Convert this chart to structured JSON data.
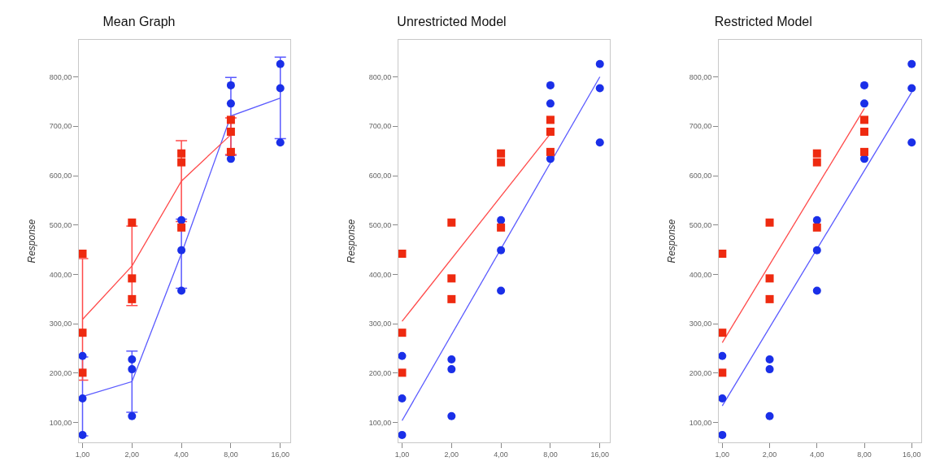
{
  "chart_data": [
    {
      "type": "scatter",
      "title": "Mean Graph",
      "ylabel": "Response",
      "log": "x",
      "xlim": [
        0.95,
        18.4
      ],
      "ylim": [
        60,
        875
      ],
      "xticks": [
        {
          "value": 1,
          "label": "1,00"
        },
        {
          "value": 2,
          "label": "2,00"
        },
        {
          "value": 4,
          "label": "4,00"
        },
        {
          "value": 8,
          "label": "8,00"
        },
        {
          "value": 16,
          "label": "16,00"
        }
      ],
      "yticks": [
        {
          "value": 100,
          "label": "100,00"
        },
        {
          "value": 200,
          "label": "200,00"
        },
        {
          "value": 300,
          "label": "300,00"
        },
        {
          "value": 400,
          "label": "400,00"
        },
        {
          "value": 500,
          "label": "500,00"
        },
        {
          "value": 600,
          "label": "600,00"
        },
        {
          "value": 700,
          "label": "700,00"
        },
        {
          "value": 800,
          "label": "800,00"
        }
      ],
      "series": [
        {
          "type": "line",
          "marker": "none",
          "color": "#5a5aff",
          "x": [
            1,
            2,
            4,
            8,
            16
          ],
          "values": [
            153,
            183,
            442,
            721,
            757
          ],
          "errors": [
            [
              73,
              233
            ],
            [
              121,
              245
            ],
            [
              372,
              512
            ],
            [
              641,
              799
            ],
            [
              675,
              840
            ]
          ]
        },
        {
          "type": "line",
          "marker": "none",
          "color": "#ff4a4a",
          "x": [
            1,
            2,
            4,
            8
          ],
          "values": [
            309,
            417,
            589,
            683
          ],
          "errors": [
            [
              186,
              432
            ],
            [
              337,
              498
            ],
            [
              507,
              671
            ],
            [
              643,
              717
            ]
          ]
        },
        {
          "type": "scatter",
          "marker": "circle",
          "color": "#1a2fe8",
          "x": [
            1,
            1,
            1,
            2,
            2,
            2,
            4,
            4,
            4,
            8,
            8,
            8,
            16,
            16,
            16
          ],
          "values": [
            235,
            149,
            75,
            228,
            208,
            113,
            510,
            449,
            367,
            783,
            746,
            634,
            826,
            777,
            667
          ]
        },
        {
          "type": "scatter",
          "marker": "square",
          "color": "#ee2a10",
          "x": [
            1,
            1,
            1,
            2,
            2,
            2,
            4,
            4,
            4,
            8,
            8,
            8
          ],
          "values": [
            442,
            282,
            201,
            505,
            392,
            350,
            645,
            627,
            495,
            713,
            689,
            648
          ]
        }
      ]
    },
    {
      "type": "scatter",
      "title": "Unrestricted Model",
      "ylabel": "Response",
      "log": "x",
      "xlim": [
        0.95,
        18.4
      ],
      "ylim": [
        60,
        875
      ],
      "xticks": [
        {
          "value": 1,
          "label": "1,00"
        },
        {
          "value": 2,
          "label": "2,00"
        },
        {
          "value": 4,
          "label": "4,00"
        },
        {
          "value": 8,
          "label": "8,00"
        },
        {
          "value": 16,
          "label": "16,00"
        }
      ],
      "yticks": [
        {
          "value": 100,
          "label": "100,00"
        },
        {
          "value": 200,
          "label": "200,00"
        },
        {
          "value": 300,
          "label": "300,00"
        },
        {
          "value": 400,
          "label": "400,00"
        },
        {
          "value": 500,
          "label": "500,00"
        },
        {
          "value": 600,
          "label": "600,00"
        },
        {
          "value": 700,
          "label": "700,00"
        },
        {
          "value": 800,
          "label": "800,00"
        }
      ],
      "series": [
        {
          "type": "line",
          "marker": "none",
          "color": "#5a5aff",
          "x": [
            1,
            16
          ],
          "values": [
            104,
            800
          ]
        },
        {
          "type": "line",
          "marker": "none",
          "color": "#ff4a4a",
          "x": [
            1,
            8
          ],
          "values": [
            305,
            685
          ]
        },
        {
          "type": "scatter",
          "marker": "circle",
          "color": "#1a2fe8",
          "x": [
            1,
            1,
            1,
            2,
            2,
            2,
            4,
            4,
            4,
            8,
            8,
            8,
            16,
            16,
            16
          ],
          "values": [
            235,
            149,
            75,
            228,
            208,
            113,
            510,
            449,
            367,
            783,
            746,
            634,
            826,
            777,
            667
          ]
        },
        {
          "type": "scatter",
          "marker": "square",
          "color": "#ee2a10",
          "x": [
            1,
            1,
            1,
            2,
            2,
            2,
            4,
            4,
            4,
            8,
            8,
            8
          ],
          "values": [
            442,
            282,
            201,
            505,
            392,
            350,
            645,
            627,
            495,
            713,
            689,
            648
          ]
        }
      ]
    },
    {
      "type": "scatter",
      "title": "Restricted Model",
      "ylabel": "Response",
      "log": "x",
      "xlim": [
        0.95,
        18.4
      ],
      "ylim": [
        60,
        875
      ],
      "xticks": [
        {
          "value": 1,
          "label": "1,00"
        },
        {
          "value": 2,
          "label": "2,00"
        },
        {
          "value": 4,
          "label": "4,00"
        },
        {
          "value": 8,
          "label": "8,00"
        },
        {
          "value": 16,
          "label": "16,00"
        }
      ],
      "yticks": [
        {
          "value": 100,
          "label": "100,00"
        },
        {
          "value": 200,
          "label": "200,00"
        },
        {
          "value": 300,
          "label": "300,00"
        },
        {
          "value": 400,
          "label": "400,00"
        },
        {
          "value": 500,
          "label": "500,00"
        },
        {
          "value": 600,
          "label": "600,00"
        },
        {
          "value": 700,
          "label": "700,00"
        },
        {
          "value": 800,
          "label": "800,00"
        }
      ],
      "series": [
        {
          "type": "line",
          "marker": "none",
          "color": "#5a5aff",
          "x": [
            1,
            16
          ],
          "values": [
            134,
            769
          ]
        },
        {
          "type": "line",
          "marker": "none",
          "color": "#ff4a4a",
          "x": [
            1,
            8
          ],
          "values": [
            262,
            736
          ]
        },
        {
          "type": "scatter",
          "marker": "circle",
          "color": "#1a2fe8",
          "x": [
            1,
            1,
            1,
            2,
            2,
            2,
            4,
            4,
            4,
            8,
            8,
            8,
            16,
            16,
            16
          ],
          "values": [
            235,
            149,
            75,
            228,
            208,
            113,
            510,
            449,
            367,
            783,
            746,
            634,
            826,
            777,
            667
          ]
        },
        {
          "type": "scatter",
          "marker": "square",
          "color": "#ee2a10",
          "x": [
            1,
            1,
            1,
            2,
            2,
            2,
            4,
            4,
            4,
            8,
            8,
            8
          ],
          "values": [
            442,
            282,
            201,
            505,
            392,
            350,
            645,
            627,
            495,
            713,
            689,
            648
          ]
        }
      ]
    }
  ]
}
